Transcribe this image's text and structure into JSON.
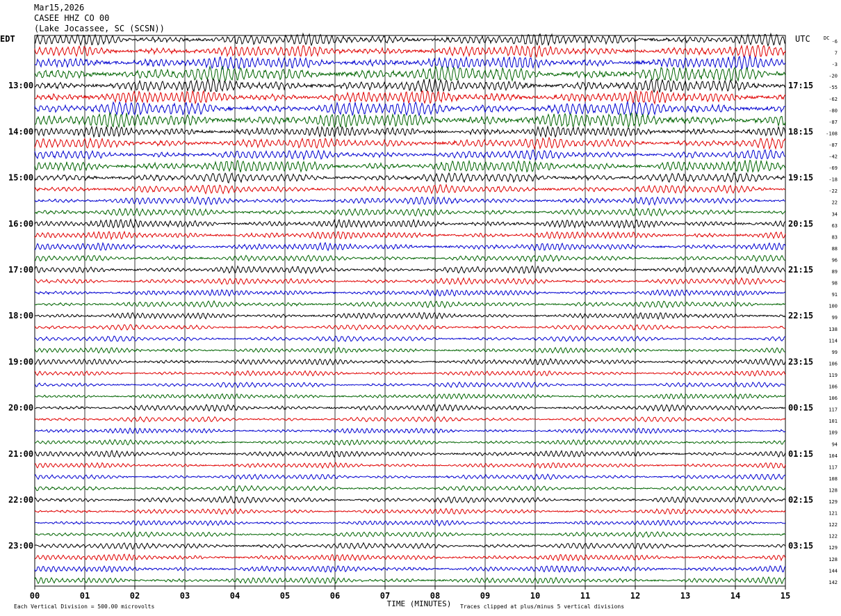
{
  "header": {
    "date": "Mar15,2026",
    "station": "CASEE HHZ CO 00",
    "location": "(Lake Jocassee, SC (SCSN))"
  },
  "left_zone_label": "EDT",
  "right_zone_label": "UTC",
  "dc_label": "DC",
  "colors": {
    "cycle": [
      "#000000",
      "#e00000",
      "#0000d0",
      "#006400"
    ],
    "grid": "#000000"
  },
  "chart_data": {
    "type": "line",
    "subtype": "helicorder",
    "rows_per_hour": 4,
    "minutes_per_row": 15,
    "left_hour_labels": [
      "13:00",
      "14:00",
      "15:00",
      "16:00",
      "17:00",
      "18:00",
      "19:00",
      "20:00",
      "21:00",
      "22:00",
      "23:00"
    ],
    "right_hour_labels": [
      "17:15",
      "18:15",
      "19:15",
      "20:15",
      "21:15",
      "22:15",
      "23:15",
      "00:15",
      "01:15",
      "02:15",
      "03:15"
    ],
    "dc_offsets": [
      "-6",
      "7",
      "-3",
      "-20",
      "-55",
      "-62",
      "-80",
      "-87",
      "-108",
      "-87",
      "-42",
      "-69",
      "-18",
      "-22",
      "22",
      "34",
      "63",
      "83",
      "88",
      "96",
      "89",
      "98",
      "91",
      "100",
      "99",
      "138",
      "114",
      "99",
      "106",
      "119",
      "106",
      "106",
      "117",
      "101",
      "109",
      "94",
      "104",
      "117",
      "108",
      "128",
      "129",
      "121",
      "122",
      "122",
      "129",
      "128",
      "144",
      "142"
    ],
    "row_amplitude_divisions": [
      0.55,
      0.55,
      0.6,
      0.7,
      0.6,
      0.6,
      0.65,
      0.7,
      0.5,
      0.5,
      0.45,
      0.55,
      0.45,
      0.4,
      0.35,
      0.35,
      0.4,
      0.35,
      0.35,
      0.3,
      0.35,
      0.3,
      0.3,
      0.3,
      0.3,
      0.25,
      0.25,
      0.25,
      0.3,
      0.25,
      0.25,
      0.25,
      0.3,
      0.25,
      0.25,
      0.25,
      0.3,
      0.25,
      0.25,
      0.25,
      0.3,
      0.25,
      0.25,
      0.25,
      0.3,
      0.3,
      0.3,
      0.3
    ],
    "xticks": [
      "00",
      "01",
      "02",
      "03",
      "04",
      "05",
      "06",
      "07",
      "08",
      "09",
      "10",
      "11",
      "12",
      "13",
      "14",
      "15"
    ],
    "xlim": [
      0,
      15
    ],
    "xlabel": "TIME (MINUTES)",
    "scale_note": "Each Vertical Division =  500.00 microvolts",
    "clip_note": "Traces clipped at plus/minus 5 vertical divisions"
  }
}
